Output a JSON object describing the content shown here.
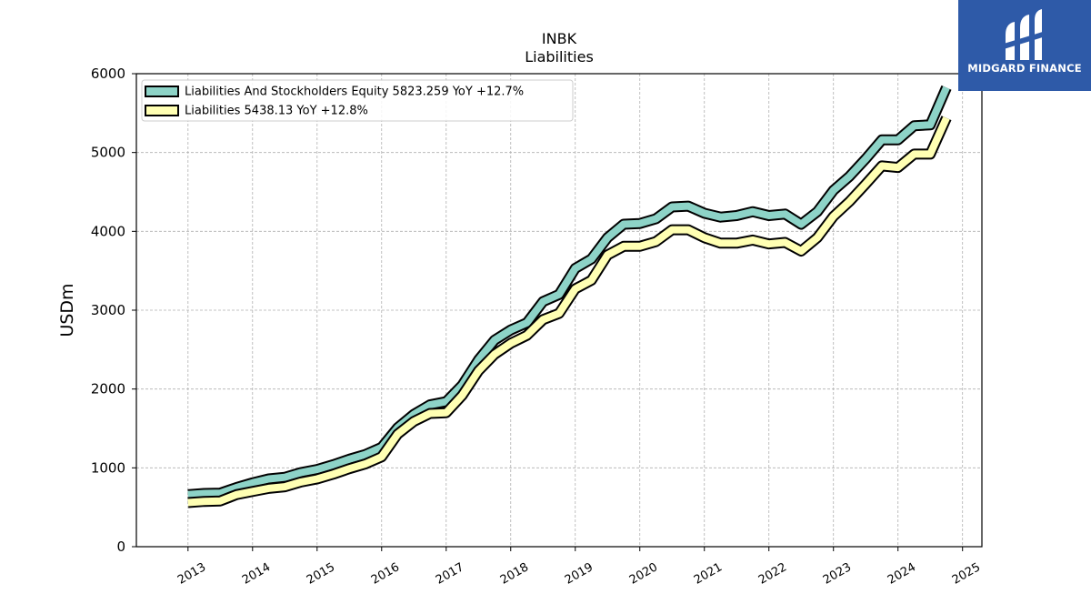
{
  "logo": {
    "text": "MIDGARD FINANCE",
    "bg": "#2e5aa8"
  },
  "chart_data": {
    "type": "line",
    "title": "INBK",
    "subtitle": "Liabilities",
    "ylabel": "USDm",
    "xlabel": "",
    "ylim": [
      0,
      6000
    ],
    "xlim": [
      2012.2,
      2025.3
    ],
    "yticks": [
      0,
      1000,
      2000,
      3000,
      4000,
      5000,
      6000
    ],
    "xticks": [
      2013,
      2014,
      2015,
      2016,
      2017,
      2018,
      2019,
      2020,
      2021,
      2022,
      2023,
      2024,
      2025
    ],
    "grid": true,
    "legend_position": "top-left",
    "series": [
      {
        "name": "Liabilities And Stockholders Equity",
        "legend": "Liabilities And Stockholders Equity  5823.259 YoY +12.7%",
        "color": "#8dd3c7",
        "x": [
          2013.0,
          2013.25,
          2013.5,
          2013.75,
          2014.0,
          2014.25,
          2014.5,
          2014.75,
          2015.0,
          2015.25,
          2015.5,
          2015.75,
          2016.0,
          2016.25,
          2016.5,
          2016.75,
          2017.0,
          2017.25,
          2017.5,
          2017.75,
          2018.0,
          2018.25,
          2018.5,
          2018.75,
          2019.0,
          2019.25,
          2019.5,
          2019.75,
          2020.0,
          2020.25,
          2020.5,
          2020.75,
          2021.0,
          2021.25,
          2021.5,
          2021.75,
          2022.0,
          2022.25,
          2022.5,
          2022.75,
          2023.0,
          2023.25,
          2023.5,
          2023.75,
          2024.0,
          2024.25,
          2024.5,
          2024.75
        ],
        "y": [
          660,
          675,
          680,
          750,
          810,
          860,
          880,
          940,
          980,
          1040,
          1110,
          1170,
          1260,
          1510,
          1680,
          1800,
          1840,
          2050,
          2370,
          2620,
          2750,
          2840,
          3110,
          3200,
          3530,
          3650,
          3920,
          4090,
          4100,
          4160,
          4310,
          4320,
          4230,
          4180,
          4200,
          4250,
          4200,
          4220,
          4090,
          4250,
          4520,
          4700,
          4920,
          5160,
          5160,
          5340,
          5350,
          5823
        ]
      },
      {
        "name": "Liabilities",
        "legend": "Liabilities  5438.13 YoY +12.8%",
        "color": "#ffffb3",
        "x": [
          2013.0,
          2013.25,
          2013.5,
          2013.75,
          2014.0,
          2014.25,
          2014.5,
          2014.75,
          2015.0,
          2015.25,
          2015.5,
          2015.75,
          2016.0,
          2016.25,
          2016.5,
          2016.75,
          2017.0,
          2017.25,
          2017.5,
          2017.75,
          2018.0,
          2018.25,
          2018.5,
          2018.75,
          2019.0,
          2019.25,
          2019.5,
          2019.75,
          2020.0,
          2020.25,
          2020.5,
          2020.75,
          2021.0,
          2021.25,
          2021.5,
          2021.75,
          2022.0,
          2022.25,
          2022.5,
          2022.75,
          2023.0,
          2023.25,
          2023.5,
          2023.75,
          2024.0,
          2024.25,
          2024.5,
          2024.75
        ],
        "y": [
          560,
          575,
          580,
          660,
          700,
          740,
          760,
          820,
          860,
          920,
          990,
          1050,
          1140,
          1430,
          1590,
          1690,
          1700,
          1920,
          2230,
          2440,
          2580,
          2680,
          2880,
          2960,
          3270,
          3380,
          3700,
          3810,
          3810,
          3870,
          4020,
          4020,
          3920,
          3850,
          3850,
          3890,
          3840,
          3860,
          3750,
          3920,
          4190,
          4380,
          4600,
          4830,
          4810,
          4980,
          4980,
          5438
        ]
      }
    ]
  }
}
